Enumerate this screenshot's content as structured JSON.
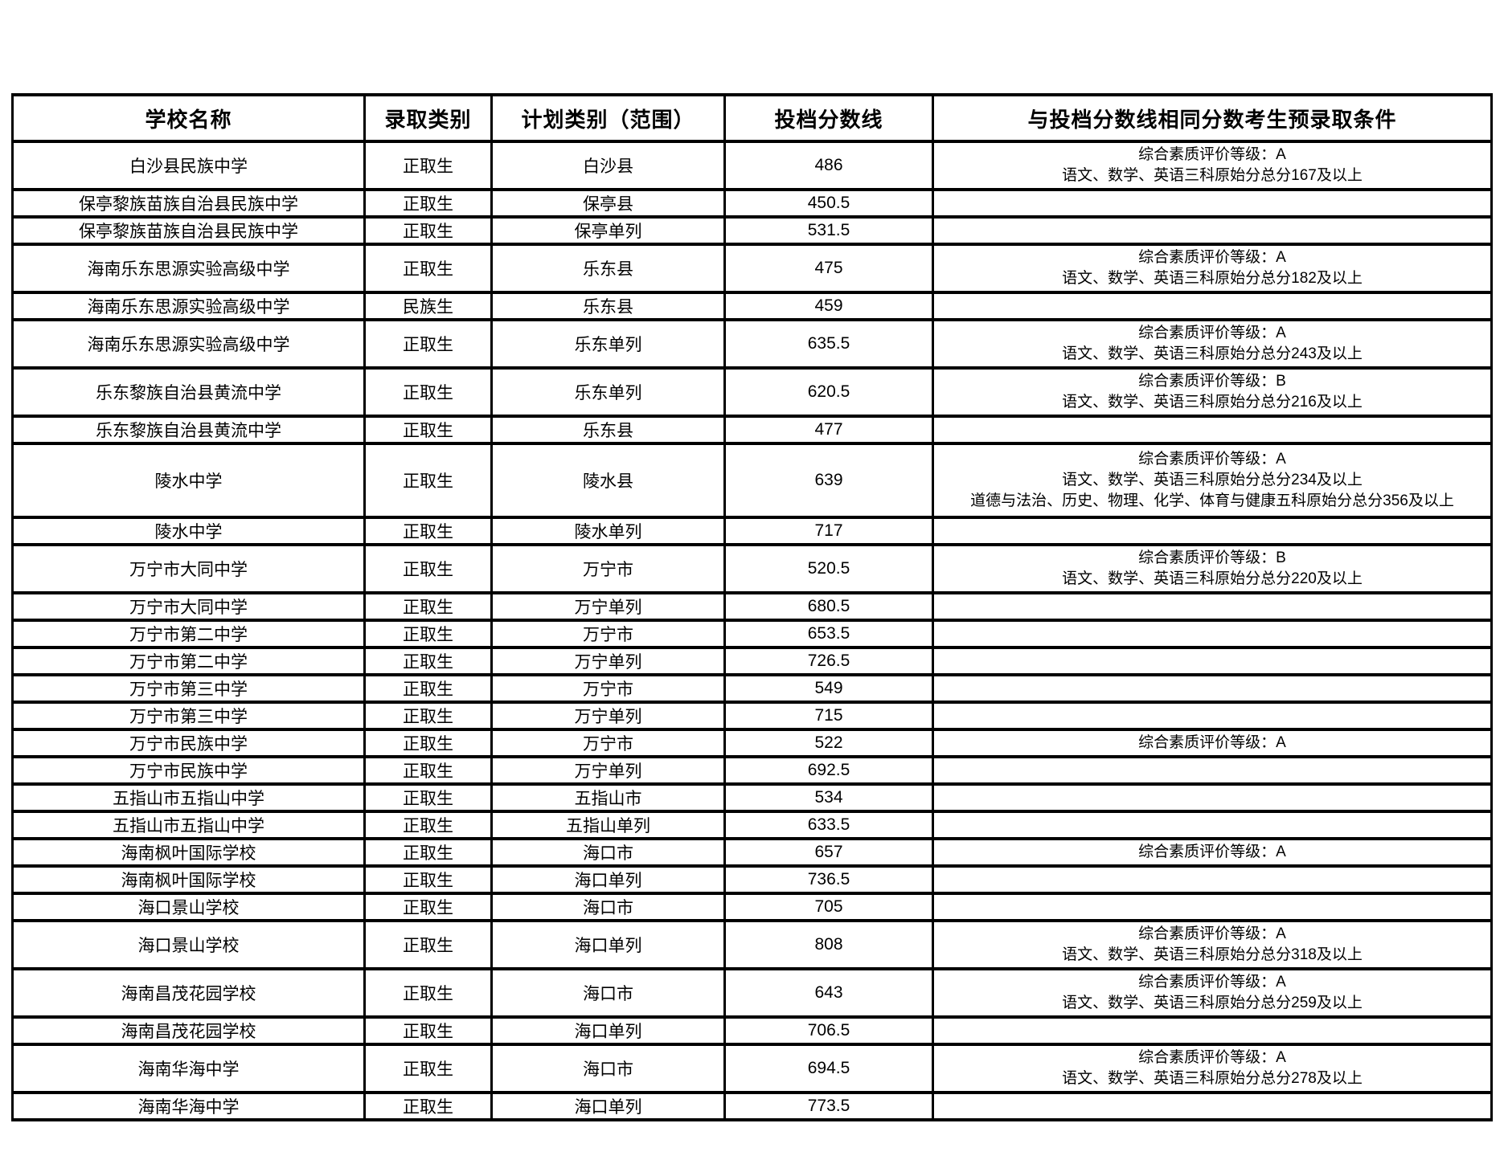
{
  "table": {
    "columns": [
      "学校名称",
      "录取类别",
      "计划类别（范围）",
      "投档分数线",
      "与投档分数线相同分数考生预录取条件"
    ],
    "rows": [
      {
        "school": "白沙县民族中学",
        "type": "正取生",
        "plan": "白沙县",
        "score": "486",
        "conditions": [
          "综合素质评价等级：A",
          "语文、数学、英语三科原始分总分167及以上"
        ]
      },
      {
        "school": "保亭黎族苗族自治县民族中学",
        "type": "正取生",
        "plan": "保亭县",
        "score": "450.5",
        "conditions": []
      },
      {
        "school": "保亭黎族苗族自治县民族中学",
        "type": "正取生",
        "plan": "保亭单列",
        "score": "531.5",
        "conditions": []
      },
      {
        "school": "海南乐东思源实验高级中学",
        "type": "正取生",
        "plan": "乐东县",
        "score": "475",
        "conditions": [
          "综合素质评价等级：A",
          "语文、数学、英语三科原始分总分182及以上"
        ]
      },
      {
        "school": "海南乐东思源实验高级中学",
        "type": "民族生",
        "plan": "乐东县",
        "score": "459",
        "conditions": []
      },
      {
        "school": "海南乐东思源实验高级中学",
        "type": "正取生",
        "plan": "乐东单列",
        "score": "635.5",
        "conditions": [
          "综合素质评价等级：A",
          "语文、数学、英语三科原始分总分243及以上"
        ]
      },
      {
        "school": "乐东黎族自治县黄流中学",
        "type": "正取生",
        "plan": "乐东单列",
        "score": "620.5",
        "conditions": [
          "综合素质评价等级：B",
          "语文、数学、英语三科原始分总分216及以上"
        ]
      },
      {
        "school": "乐东黎族自治县黄流中学",
        "type": "正取生",
        "plan": "乐东县",
        "score": "477",
        "conditions": []
      },
      {
        "school": "陵水中学",
        "type": "正取生",
        "plan": "陵水县",
        "score": "639",
        "conditions": [
          "综合素质评价等级：A",
          "语文、数学、英语三科原始分总分234及以上",
          "道德与法治、历史、物理、化学、体育与健康五科原始分总分356及以上"
        ]
      },
      {
        "school": "陵水中学",
        "type": "正取生",
        "plan": "陵水单列",
        "score": "717",
        "conditions": []
      },
      {
        "school": "万宁市大同中学",
        "type": "正取生",
        "plan": "万宁市",
        "score": "520.5",
        "conditions": [
          "综合素质评价等级：B",
          "语文、数学、英语三科原始分总分220及以上"
        ]
      },
      {
        "school": "万宁市大同中学",
        "type": "正取生",
        "plan": "万宁单列",
        "score": "680.5",
        "conditions": []
      },
      {
        "school": "万宁市第二中学",
        "type": "正取生",
        "plan": "万宁市",
        "score": "653.5",
        "conditions": []
      },
      {
        "school": "万宁市第二中学",
        "type": "正取生",
        "plan": "万宁单列",
        "score": "726.5",
        "conditions": []
      },
      {
        "school": "万宁市第三中学",
        "type": "正取生",
        "plan": "万宁市",
        "score": "549",
        "conditions": []
      },
      {
        "school": "万宁市第三中学",
        "type": "正取生",
        "plan": "万宁单列",
        "score": "715",
        "conditions": []
      },
      {
        "school": "万宁市民族中学",
        "type": "正取生",
        "plan": "万宁市",
        "score": "522",
        "conditions": [
          "综合素质评价等级：A"
        ]
      },
      {
        "school": "万宁市民族中学",
        "type": "正取生",
        "plan": "万宁单列",
        "score": "692.5",
        "conditions": []
      },
      {
        "school": "五指山市五指山中学",
        "type": "正取生",
        "plan": "五指山市",
        "score": "534",
        "conditions": []
      },
      {
        "school": "五指山市五指山中学",
        "type": "正取生",
        "plan": "五指山单列",
        "score": "633.5",
        "conditions": []
      },
      {
        "school": "海南枫叶国际学校",
        "type": "正取生",
        "plan": "海口市",
        "score": "657",
        "conditions": [
          "综合素质评价等级：A"
        ]
      },
      {
        "school": "海南枫叶国际学校",
        "type": "正取生",
        "plan": "海口单列",
        "score": "736.5",
        "conditions": []
      },
      {
        "school": "海口景山学校",
        "type": "正取生",
        "plan": "海口市",
        "score": "705",
        "conditions": []
      },
      {
        "school": "海口景山学校",
        "type": "正取生",
        "plan": "海口单列",
        "score": "808",
        "conditions": [
          "综合素质评价等级：A",
          "语文、数学、英语三科原始分总分318及以上"
        ]
      },
      {
        "school": "海南昌茂花园学校",
        "type": "正取生",
        "plan": "海口市",
        "score": "643",
        "conditions": [
          "综合素质评价等级：A",
          "语文、数学、英语三科原始分总分259及以上"
        ]
      },
      {
        "school": "海南昌茂花园学校",
        "type": "正取生",
        "plan": "海口单列",
        "score": "706.5",
        "conditions": []
      },
      {
        "school": "海南华海中学",
        "type": "正取生",
        "plan": "海口市",
        "score": "694.5",
        "conditions": [
          "综合素质评价等级：A",
          "语文、数学、英语三科原始分总分278及以上"
        ]
      },
      {
        "school": "海南华海中学",
        "type": "正取生",
        "plan": "海口单列",
        "score": "773.5",
        "conditions": []
      }
    ]
  }
}
